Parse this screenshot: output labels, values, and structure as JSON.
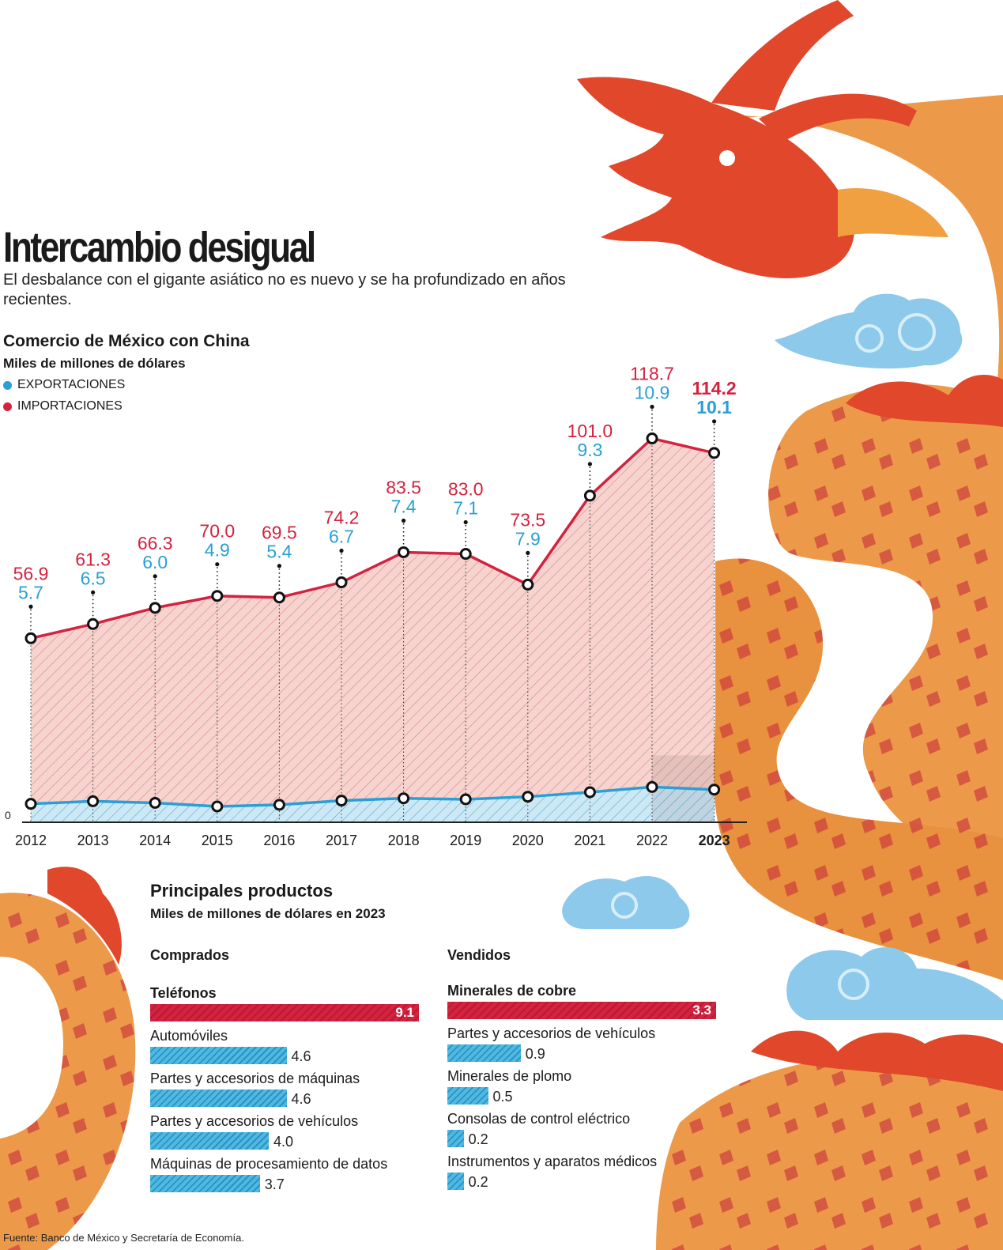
{
  "header": {
    "title": "Intercambio desigual",
    "subtitle": "El desbalance con el gigante asiático no es nuevo y se ha profundizado en años recientes."
  },
  "chart": {
    "title": "Comercio de México con China",
    "unit": "Miles de millones de dólares",
    "zero_label": "0"
  },
  "legend": {
    "exports_label": "EXPORTACIONES",
    "imports_label": "IMPORTACIONES"
  },
  "colors": {
    "exports": "#2a9fd6",
    "imports": "#d4223f",
    "imports_fill": "#f6d3cf",
    "exports_fill": "#cde8f5",
    "dragon_orange": "#ec9a4a",
    "dragon_red": "#e0472b",
    "cloud": "#8dc9ea"
  },
  "chart_data": [
    {
      "type": "area",
      "title": "Comercio de México con China",
      "ylabel": "Miles de millones de dólares",
      "categories": [
        "2012",
        "2013",
        "2014",
        "2015",
        "2016",
        "2017",
        "2018",
        "2019",
        "2020",
        "2021",
        "2022",
        "2023"
      ],
      "series": [
        {
          "name": "IMPORTACIONES",
          "values": [
            56.9,
            61.3,
            66.3,
            70.0,
            69.5,
            74.2,
            83.5,
            83.0,
            73.5,
            101.0,
            118.7,
            114.2
          ]
        },
        {
          "name": "EXPORTACIONES",
          "values": [
            5.7,
            6.5,
            6.0,
            4.9,
            5.4,
            6.7,
            7.4,
            7.1,
            7.9,
            9.3,
            10.9,
            10.1
          ]
        }
      ],
      "ylim": [
        0,
        125
      ],
      "highlight_category": "2023"
    },
    {
      "type": "bar",
      "title": "Principales productos — Comprados",
      "unit": "Miles de millones de dólares en 2023",
      "categories": [
        "Teléfonos",
        "Automóviles",
        "Partes y accesorios de máquinas",
        "Partes y accesorios de vehículos",
        "Máquinas de procesamiento de datos"
      ],
      "values": [
        9.1,
        4.6,
        4.6,
        4.0,
        3.7
      ]
    },
    {
      "type": "bar",
      "title": "Principales productos — Vendidos",
      "unit": "Miles de millones de dólares en 2023",
      "categories": [
        "Minerales de cobre",
        "Partes y accesorios de vehículos",
        "Minerales de plomo",
        "Consolas de control eléctrico",
        "Instrumentos y aparatos médicos"
      ],
      "values": [
        3.3,
        0.9,
        0.5,
        0.2,
        0.2
      ]
    }
  ],
  "products": {
    "title": "Principales productos",
    "subtitle": "Miles de millones de dólares en 2023",
    "bought_heading": "Comprados",
    "sold_heading": "Vendidos"
  },
  "source": "Fuente: Banco de México y Secretaría de Economía."
}
